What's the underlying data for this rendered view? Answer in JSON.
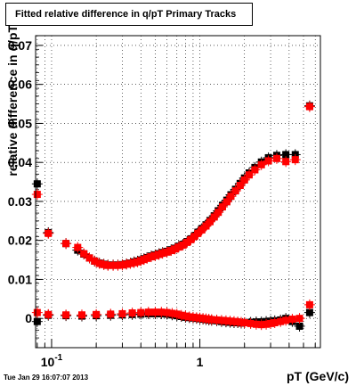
{
  "title": "Fitted relative difference in q/pT  Primary Tracks",
  "timestamp": "Tue Jan 29 16:07:07 2013",
  "chart_data": {
    "type": "scatter",
    "title": "Fitted relative difference in q/pT  Primary Tracks",
    "xlabel": "pT (GeV/c)",
    "ylabel": "relative difference in q/pT",
    "xscale": "log",
    "xlim": [
      0.078,
      6.5
    ],
    "ylim": [
      -0.0075,
      0.0725
    ],
    "x_tick_labels": [
      "10^-1",
      "1"
    ],
    "y_tick_labels": [
      "0",
      "0.01",
      "0.02",
      "0.03",
      "0.04",
      "0.05",
      "0.06",
      "0.07"
    ],
    "grid": true,
    "legend": "none",
    "series": [
      {
        "color": "#000000",
        "x": [
          0.08,
          0.095,
          0.125,
          0.15,
          0.165,
          0.18,
          0.195,
          0.21,
          0.225,
          0.24,
          0.26,
          0.28,
          0.3,
          0.32,
          0.34,
          0.36,
          0.38,
          0.4,
          0.42,
          0.44,
          0.47,
          0.5,
          0.53,
          0.56,
          0.6,
          0.64,
          0.68,
          0.72,
          0.77,
          0.82,
          0.87,
          0.92,
          0.97,
          1.03,
          1.1,
          1.17,
          1.25,
          1.33,
          1.42,
          1.52,
          1.62,
          1.74,
          1.87,
          2.0,
          2.15,
          2.35,
          2.6,
          2.9,
          3.3,
          3.8,
          4.4,
          5.5
        ],
        "y": [
          0.0345,
          0.022,
          0.0192,
          0.0175,
          0.0165,
          0.0155,
          0.0147,
          0.0142,
          0.0139,
          0.0137,
          0.0137,
          0.0137,
          0.0138,
          0.014,
          0.0142,
          0.0145,
          0.0147,
          0.015,
          0.0153,
          0.0156,
          0.016,
          0.0163,
          0.0166,
          0.0169,
          0.0172,
          0.0176,
          0.018,
          0.0185,
          0.019,
          0.0197,
          0.0204,
          0.0212,
          0.0221,
          0.023,
          0.024,
          0.0251,
          0.0263,
          0.0276,
          0.029,
          0.0303,
          0.0317,
          0.0331,
          0.0346,
          0.036,
          0.0373,
          0.0387,
          0.0401,
          0.0412,
          0.0418,
          0.042,
          0.042,
          0.0545
        ],
        "x2": [
          0.08,
          0.095,
          0.125,
          0.16,
          0.2,
          0.25,
          0.3,
          0.35,
          0.4,
          0.45,
          0.5,
          0.55,
          0.6,
          0.65,
          0.7,
          0.75,
          0.8,
          0.85,
          0.9,
          0.95,
          1.0,
          1.05,
          1.1,
          1.15,
          1.2,
          1.3,
          1.4,
          1.5,
          1.6,
          1.7,
          1.8,
          1.9,
          2.0,
          2.2,
          2.4,
          2.6,
          2.8,
          3.0,
          3.2,
          3.5,
          3.8,
          4.2,
          4.7,
          5.5
        ],
        "y2": [
          -0.0008,
          0.0008,
          0.0007,
          0.0006,
          0.0007,
          0.0008,
          0.0009,
          0.001,
          0.0011,
          0.0012,
          0.0012,
          0.0012,
          0.0011,
          0.0009,
          0.0007,
          0.0005,
          0.0003,
          0.0002,
          0.0001,
          0.0,
          -0.0001,
          -0.0002,
          -0.0003,
          -0.0004,
          -0.0005,
          -0.0006,
          -0.0008,
          -0.0009,
          -0.001,
          -0.0011,
          -0.0011,
          -0.0012,
          -0.0011,
          -0.001,
          -0.0009,
          -0.0009,
          -0.0008,
          -0.0007,
          -0.0006,
          -0.0004,
          0.0,
          -0.0008,
          -0.002,
          0.0015
        ]
      },
      {
        "color": "#ff0000",
        "x": [
          0.08,
          0.095,
          0.125,
          0.15,
          0.165,
          0.18,
          0.195,
          0.21,
          0.225,
          0.24,
          0.26,
          0.28,
          0.3,
          0.32,
          0.34,
          0.36,
          0.38,
          0.4,
          0.42,
          0.44,
          0.47,
          0.5,
          0.53,
          0.56,
          0.6,
          0.64,
          0.68,
          0.72,
          0.77,
          0.82,
          0.87,
          0.92,
          0.97,
          1.03,
          1.1,
          1.17,
          1.25,
          1.33,
          1.42,
          1.52,
          1.62,
          1.74,
          1.87,
          2.0,
          2.15,
          2.35,
          2.6,
          2.9,
          3.3,
          3.8,
          4.4,
          5.5
        ],
        "y": [
          0.0318,
          0.0218,
          0.0192,
          0.0182,
          0.0166,
          0.0155,
          0.0147,
          0.0141,
          0.0138,
          0.0136,
          0.0136,
          0.0136,
          0.0137,
          0.0139,
          0.0141,
          0.0143,
          0.0145,
          0.0148,
          0.0151,
          0.0154,
          0.0158,
          0.0161,
          0.0164,
          0.0167,
          0.017,
          0.0174,
          0.0178,
          0.0183,
          0.0188,
          0.0195,
          0.0202,
          0.021,
          0.0218,
          0.0227,
          0.0237,
          0.0248,
          0.026,
          0.0272,
          0.0286,
          0.0299,
          0.0313,
          0.0327,
          0.0341,
          0.0355,
          0.0368,
          0.0381,
          0.0394,
          0.0404,
          0.041,
          0.0402,
          0.0407,
          0.0543
        ],
        "x2": [
          0.08,
          0.095,
          0.125,
          0.16,
          0.2,
          0.25,
          0.3,
          0.35,
          0.4,
          0.45,
          0.5,
          0.55,
          0.6,
          0.65,
          0.7,
          0.75,
          0.8,
          0.85,
          0.9,
          0.95,
          1.0,
          1.05,
          1.1,
          1.15,
          1.2,
          1.3,
          1.4,
          1.5,
          1.6,
          1.7,
          1.8,
          1.9,
          2.0,
          2.2,
          2.4,
          2.6,
          2.8,
          3.0,
          3.2,
          3.5,
          3.8,
          4.2,
          4.7,
          5.5
        ],
        "y2": [
          0.0015,
          0.001,
          0.0009,
          0.0009,
          0.001,
          0.0011,
          0.0012,
          0.0014,
          0.0015,
          0.0016,
          0.0016,
          0.0016,
          0.0015,
          0.0013,
          0.0011,
          0.0008,
          0.0006,
          0.0004,
          0.0003,
          0.0002,
          0.0001,
          0.0,
          -0.0001,
          -0.0002,
          -0.0003,
          -0.0004,
          -0.0005,
          -0.0006,
          -0.0007,
          -0.0008,
          -0.0009,
          -0.001,
          -0.0011,
          -0.0013,
          -0.0015,
          -0.0016,
          -0.0015,
          -0.0013,
          -0.0011,
          -0.0008,
          -0.0005,
          -0.0002,
          0.0,
          0.0035
        ]
      }
    ]
  }
}
